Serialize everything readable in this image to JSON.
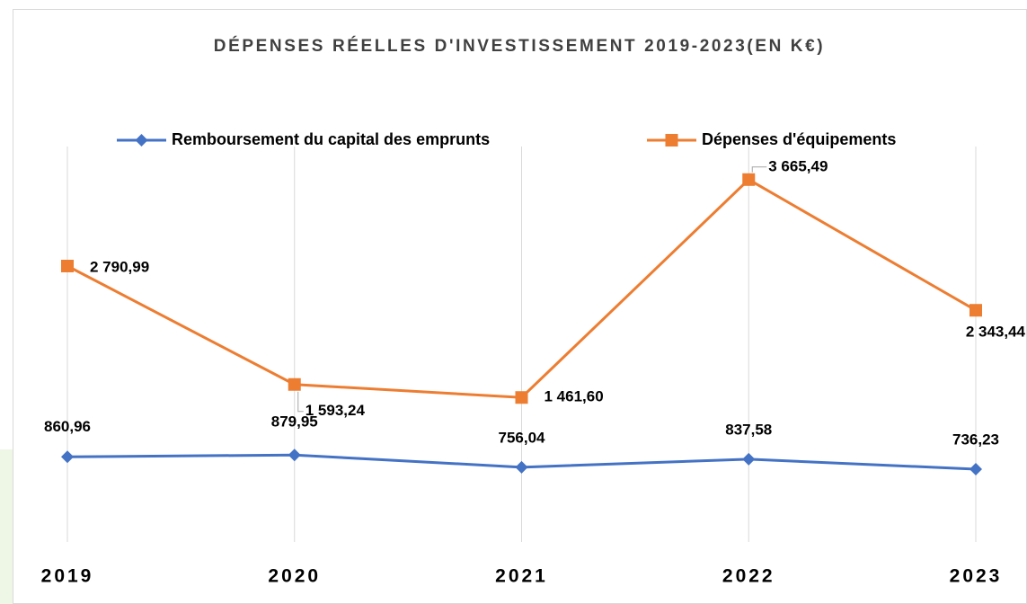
{
  "chart_data": {
    "type": "line",
    "title": "DÉPENSES RÉELLES D'INVESTISSEMENT 2019-2023(EN K€)",
    "categories": [
      "2019",
      "2020",
      "2021",
      "2022",
      "2023"
    ],
    "series": [
      {
        "name": "Remboursement du capital des emprunts",
        "color": "#4472c4",
        "marker": "diamond",
        "values": [
          860.96,
          879.95,
          756.04,
          837.58,
          736.23
        ],
        "value_labels": [
          "860,96",
          "879,95",
          "756,04",
          "837,58",
          "736,23"
        ]
      },
      {
        "name": "Dépenses d'équipements",
        "color": "#ed7d31",
        "marker": "square",
        "values": [
          2790.99,
          1593.24,
          1461.6,
          3665.49,
          2343.44
        ],
        "value_labels": [
          "2 790,99",
          "1 593,24",
          "1 461,60",
          "3 665,49",
          "2 343,44"
        ]
      }
    ],
    "ylim": [
      0,
      4000
    ],
    "grid": "vertical",
    "legend": "top"
  }
}
